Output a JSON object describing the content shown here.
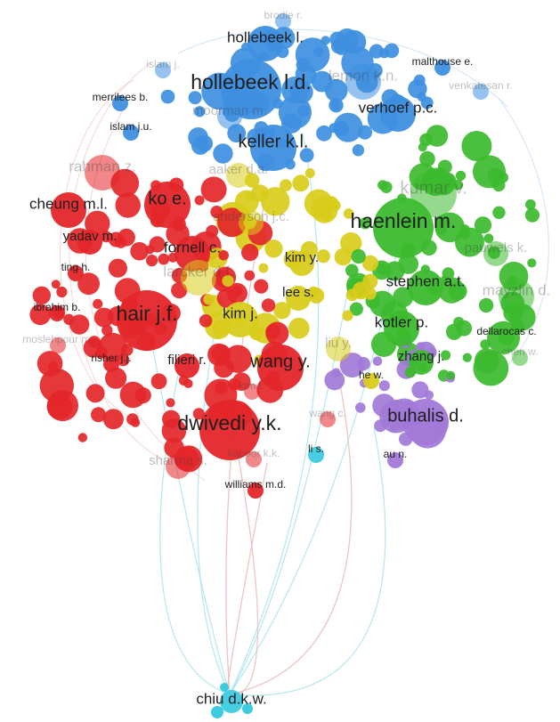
{
  "clusters": {
    "red": {
      "color": "#e4262a"
    },
    "blue": {
      "color": "#3e8fe0"
    },
    "green": {
      "color": "#3cba2e"
    },
    "yellow": {
      "color": "#d8cc1a"
    },
    "purple": {
      "color": "#a279d8"
    },
    "cyan": {
      "color": "#3ecbe2"
    }
  },
  "nodes": [
    {
      "id": "brodie",
      "label": "brodie r.",
      "cluster": "blue",
      "size": 1,
      "faded": true
    },
    {
      "id": "hollebeek_l",
      "label": "hollebeek l.",
      "cluster": "blue",
      "size": 3
    },
    {
      "id": "islam_j",
      "label": "islam j.",
      "cluster": "blue",
      "size": 1,
      "faded": true
    },
    {
      "id": "malthouse",
      "label": "malthouse e.",
      "cluster": "blue",
      "size": 1
    },
    {
      "id": "hollebeek_ld",
      "label": "hollebeek l.d.",
      "cluster": "blue",
      "size": 5
    },
    {
      "id": "lemon",
      "label": "lemon k.n.",
      "cluster": "blue",
      "size": 3,
      "faded": true
    },
    {
      "id": "venkatesan",
      "label": "venkatesan r.",
      "cluster": "blue",
      "size": 1,
      "faded": true
    },
    {
      "id": "merrilees",
      "label": "merrilees b.",
      "cluster": "blue",
      "size": 1
    },
    {
      "id": "moorman",
      "label": "moorman m.",
      "cluster": "blue",
      "size": 2,
      "faded": true
    },
    {
      "id": "verhoef",
      "label": "verhoef p.c.",
      "cluster": "blue",
      "size": 3
    },
    {
      "id": "islam_ju",
      "label": "islam j.u.",
      "cluster": "blue",
      "size": 1
    },
    {
      "id": "keller",
      "label": "keller k.l.",
      "cluster": "blue",
      "size": 4
    },
    {
      "id": "rahman",
      "label": "rahman z.",
      "cluster": "red",
      "size": 3,
      "faded": true
    },
    {
      "id": "aaker",
      "label": "aaker d.a.",
      "cluster": "yellow",
      "size": 2,
      "faded": true
    },
    {
      "id": "kumar",
      "label": "kumar v.",
      "cluster": "green",
      "size": 4,
      "faded": true
    },
    {
      "id": "cheung",
      "label": "cheung m.l.",
      "cluster": "red",
      "size": 3
    },
    {
      "id": "ko",
      "label": "ko e.",
      "cluster": "red",
      "size": 4
    },
    {
      "id": "anderson",
      "label": "anderson j.c.",
      "cluster": "yellow",
      "size": 2,
      "faded": true
    },
    {
      "id": "haenlein",
      "label": "haenlein m.",
      "cluster": "green",
      "size": 5
    },
    {
      "id": "yadav",
      "label": "yadav m.",
      "cluster": "red",
      "size": 2
    },
    {
      "id": "fornell",
      "label": "fornell c.",
      "cluster": "red",
      "size": 3
    },
    {
      "id": "pauwels",
      "label": "pauwels k.",
      "cluster": "green",
      "size": 2,
      "faded": true
    },
    {
      "id": "kim_y",
      "label": "kim y.",
      "cluster": "yellow",
      "size": 2
    },
    {
      "id": "ting",
      "label": "ting h.",
      "cluster": "red",
      "size": 1
    },
    {
      "id": "larcker",
      "label": "larcker d.f.",
      "cluster": "yellow",
      "size": 3,
      "faded": true
    },
    {
      "id": "stephen",
      "label": "stephen a.t.",
      "cluster": "green",
      "size": 3
    },
    {
      "id": "mayzlin",
      "label": "mayzlin d.",
      "cluster": "green",
      "size": 3,
      "faded": true
    },
    {
      "id": "lee_s",
      "label": "lee s.",
      "cluster": "yellow",
      "size": 2
    },
    {
      "id": "ibrahim",
      "label": "ibrahim b.",
      "cluster": "red",
      "size": 1
    },
    {
      "id": "hair",
      "label": "hair j.f.",
      "cluster": "red",
      "size": 5
    },
    {
      "id": "kim_j",
      "label": "kim j.",
      "cluster": "yellow",
      "size": 3
    },
    {
      "id": "kotler",
      "label": "kotler p.",
      "cluster": "green",
      "size": 3
    },
    {
      "id": "dellarocas",
      "label": "dellarocas c.",
      "cluster": "green",
      "size": 1
    },
    {
      "id": "moslehpour",
      "label": "moslehpour m.",
      "cluster": "red",
      "size": 1,
      "faded": true
    },
    {
      "id": "chen_w",
      "label": "chen w.",
      "cluster": "green",
      "size": 1,
      "faded": true
    },
    {
      "id": "liu_y",
      "label": "liu y.",
      "cluster": "yellow",
      "size": 2,
      "faded": true
    },
    {
      "id": "risher",
      "label": "risher j.j.",
      "cluster": "red",
      "size": 1
    },
    {
      "id": "filieri",
      "label": "filieri r.",
      "cluster": "red",
      "size": 2
    },
    {
      "id": "wang_y",
      "label": "wang y.",
      "cluster": "red",
      "size": 4
    },
    {
      "id": "zhang_j",
      "label": "zhang j.",
      "cluster": "green",
      "size": 2
    },
    {
      "id": "he_w",
      "label": "he w.",
      "cluster": "yellow",
      "size": 1
    },
    {
      "id": "kim_t",
      "label": "kim t.",
      "cluster": "red",
      "size": 1,
      "faded": true
    },
    {
      "id": "buhalis",
      "label": "buhalis d.",
      "cluster": "purple",
      "size": 4
    },
    {
      "id": "dwivedi",
      "label": "dwivedi y.k.",
      "cluster": "red",
      "size": 5
    },
    {
      "id": "wang_c",
      "label": "wang c.",
      "cluster": "red",
      "size": 1,
      "faded": true
    },
    {
      "id": "li_s",
      "label": "li s.",
      "cluster": "cyan",
      "size": 1
    },
    {
      "id": "au",
      "label": "au n.",
      "cluster": "purple",
      "size": 1
    },
    {
      "id": "sharma",
      "label": "sharma s.",
      "cluster": "red",
      "size": 2,
      "faded": true
    },
    {
      "id": "kapoor",
      "label": "kapoor k.k.",
      "cluster": "red",
      "size": 1,
      "faded": true
    },
    {
      "id": "williams",
      "label": "williams m.d.",
      "cluster": "red",
      "size": 1
    },
    {
      "id": "chiu",
      "label": "chiu d.k.w.",
      "cluster": "cyan",
      "size": 3
    }
  ]
}
